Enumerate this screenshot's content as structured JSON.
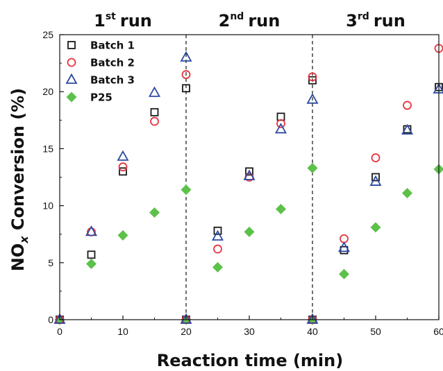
{
  "chart_data": {
    "type": "scatter",
    "xlabel": "Reaction time (min)",
    "ylabel": "NOx Conversion (%)",
    "ylabel_parts": {
      "pre": "NO",
      "sub": "x",
      "post": " Conversion (%)"
    },
    "xlim": [
      0,
      60
    ],
    "ylim": [
      0,
      25
    ],
    "xticks": [
      0,
      10,
      20,
      30,
      40,
      50,
      60
    ],
    "yticks": [
      0,
      5,
      10,
      15,
      20,
      25
    ],
    "grid": false,
    "legend_position": "top-left",
    "run_labels": [
      {
        "num": "1",
        "sup": "st",
        "word": "run",
        "x": 10
      },
      {
        "num": "2",
        "sup": "nd",
        "word": "run",
        "x": 30
      },
      {
        "num": "3",
        "sup": "rd",
        "word": "run",
        "x": 50
      }
    ],
    "dividers": [
      20,
      40
    ],
    "x": [
      0,
      5,
      10,
      15,
      20,
      20,
      25,
      30,
      35,
      40,
      40,
      45,
      50,
      55,
      60
    ],
    "series": [
      {
        "name": "Batch 1",
        "marker": "square",
        "color": "#1a1a1a",
        "values": [
          0,
          5.7,
          13.0,
          18.2,
          20.3,
          0,
          7.8,
          13.0,
          17.8,
          21.0,
          0,
          6.1,
          12.5,
          16.7,
          20.4
        ]
      },
      {
        "name": "Batch 2",
        "marker": "circle",
        "color": "#e8343f",
        "values": [
          0,
          7.7,
          13.4,
          17.4,
          21.5,
          0,
          6.2,
          12.5,
          17.2,
          21.3,
          0,
          7.1,
          14.2,
          18.8,
          23.8
        ]
      },
      {
        "name": "Batch 3",
        "marker": "triangle",
        "color": "#2b4aa0",
        "values": [
          0,
          7.7,
          14.3,
          19.9,
          23.0,
          0,
          7.3,
          12.6,
          16.7,
          19.3,
          0,
          6.3,
          12.1,
          16.6,
          20.2
        ]
      },
      {
        "name": "P25",
        "marker": "diamond",
        "color": "#5cc14a",
        "values": [
          0,
          4.9,
          7.4,
          9.4,
          11.4,
          0,
          4.6,
          7.7,
          9.7,
          13.3,
          0,
          4.0,
          8.1,
          11.1,
          13.2
        ]
      }
    ]
  }
}
